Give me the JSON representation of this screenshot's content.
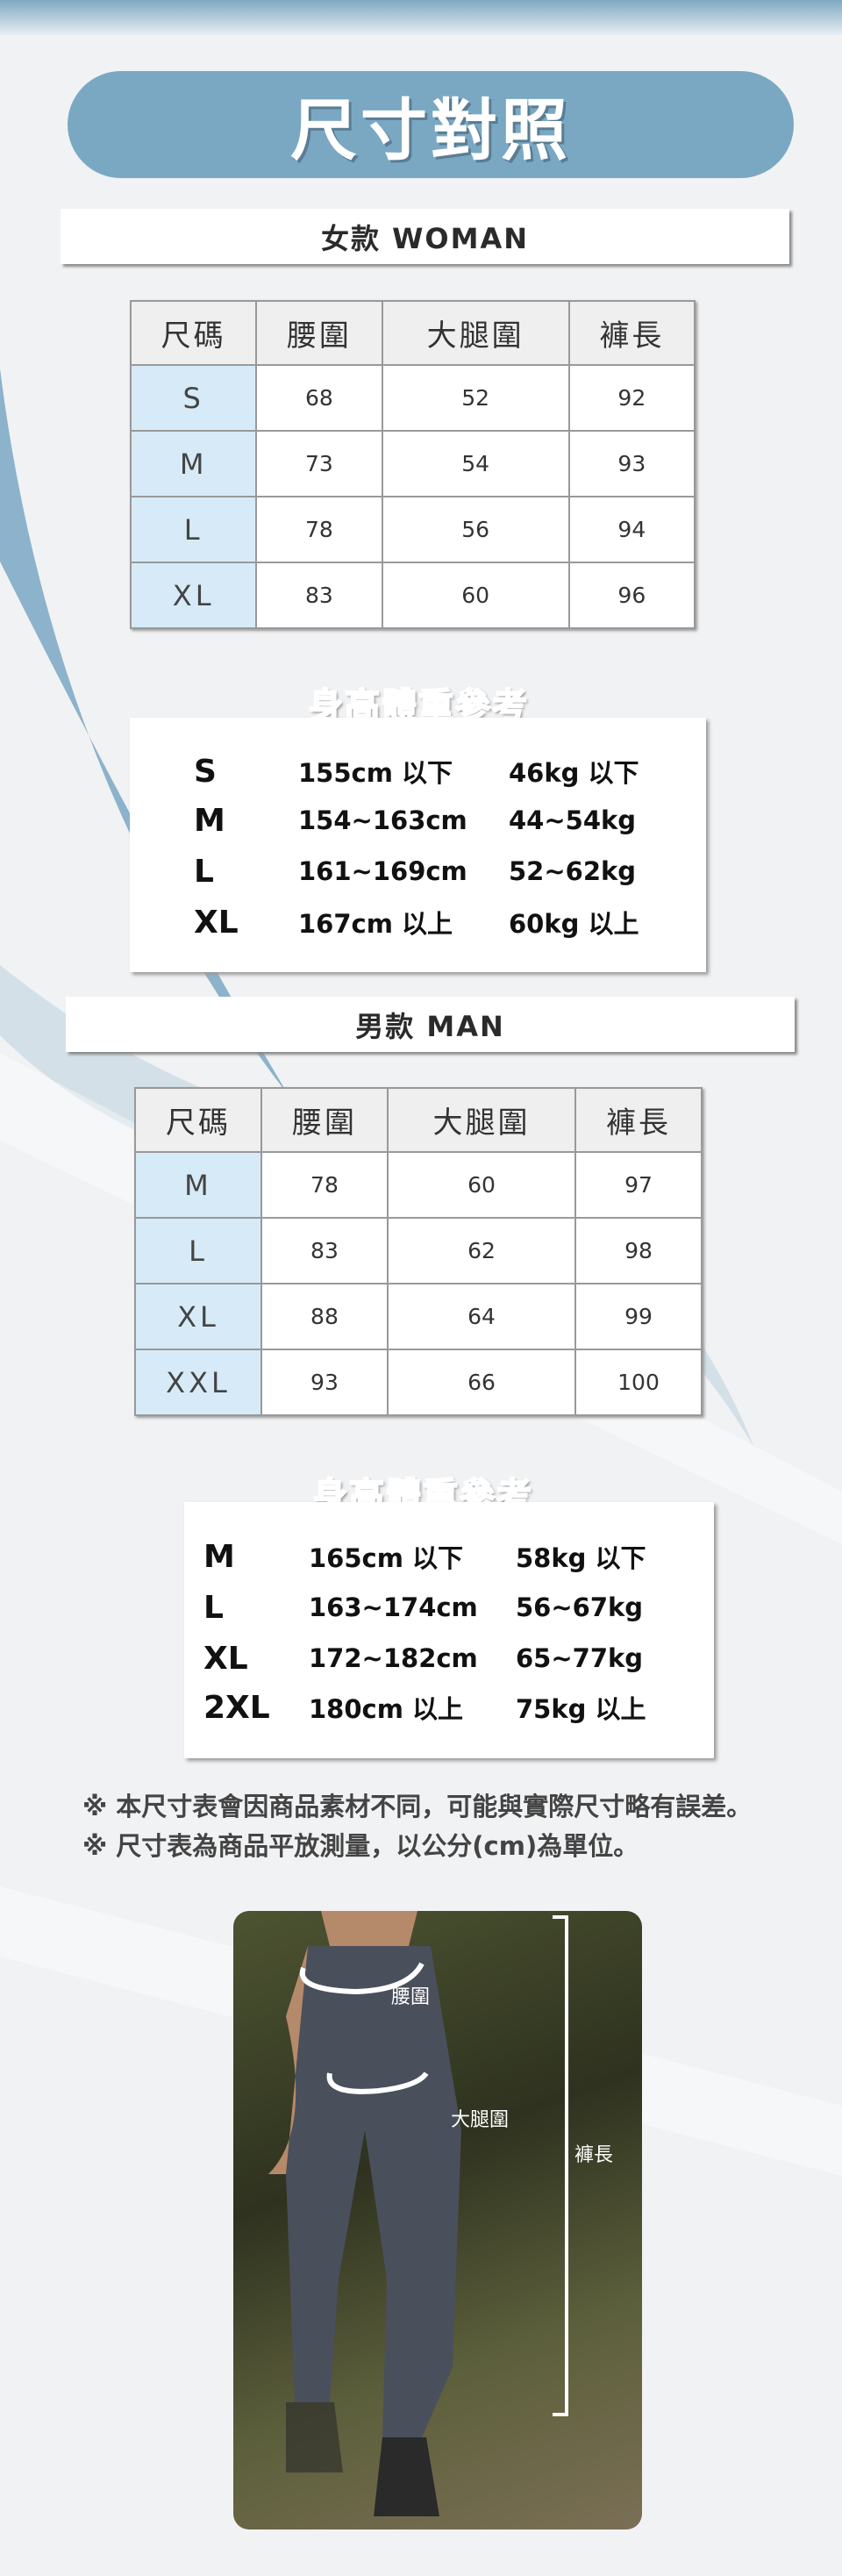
{
  "title": "尺寸對照",
  "woman": {
    "heading": "女款 WOMAN",
    "columns": [
      "尺碼",
      "腰圍",
      "大腿圍",
      "褲長"
    ],
    "rows": [
      [
        "S",
        "68",
        "52",
        "92"
      ],
      [
        "M",
        "73",
        "54",
        "93"
      ],
      [
        "L",
        "78",
        "56",
        "94"
      ],
      [
        "XL",
        "83",
        "60",
        "96"
      ]
    ],
    "ref_title": "身高體重參考",
    "ref": [
      [
        "S",
        "155cm 以下",
        "46kg 以下"
      ],
      [
        "M",
        "154~163cm",
        "44~54kg"
      ],
      [
        "L",
        "161~169cm",
        "52~62kg"
      ],
      [
        "XL",
        "167cm 以上",
        "60kg 以上"
      ]
    ]
  },
  "man": {
    "heading": "男款 MAN",
    "columns": [
      "尺碼",
      "腰圍",
      "大腿圍",
      "褲長"
    ],
    "rows": [
      [
        "M",
        "78",
        "60",
        "97"
      ],
      [
        "L",
        "83",
        "62",
        "98"
      ],
      [
        "XL",
        "88",
        "64",
        "99"
      ],
      [
        "XXL",
        "93",
        "66",
        "100"
      ]
    ],
    "ref_title": "身高體重參考",
    "ref": [
      [
        "M",
        "165cm 以下",
        "58kg 以下"
      ],
      [
        "L",
        "163~174cm",
        "56~67kg"
      ],
      [
        "XL",
        "172~182cm",
        "65~77kg"
      ],
      [
        "2XL",
        "180cm 以上",
        "75kg 以上"
      ]
    ]
  },
  "notes": [
    "※ 本尺寸表會因商品素材不同，可能與實際尺寸略有誤差。",
    "※ 尺寸表為商品平放測量，以公分(cm)為單位。"
  ],
  "photo": {
    "waist_label": "腰圍",
    "thigh_label": "大腿圍",
    "length_label": "褲長"
  },
  "colors": {
    "accent": "#7aa8c3",
    "size_cell": "#d6ebf7",
    "background": "#f1f2f4"
  }
}
